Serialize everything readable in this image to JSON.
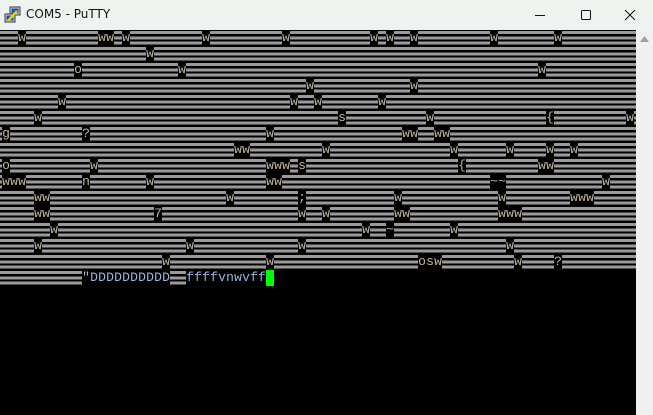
{
  "window": {
    "title": "COM5 - PuTTY",
    "icon": "putty-icon",
    "controls": [
      "minimize-icon",
      "maximize-icon",
      "close-icon"
    ]
  },
  "terminal": {
    "rows": [
      "  w         ww w         w         w          w w  w         w       w",
      "                  w",
      "         o            w                                            w",
      "                                      w            w",
      "       w                            w  w       w",
      "    w                                     s          w              {         w",
      "g         ?                      w                ww  ww",
      "                             ww         w               w      w    w  w",
      "o          w                     www s                   {         ww",
      "www       n       w              ww                          ~~            w",
      "    ww                      w        ;           w            w        www",
      "    ww             7                 w  w        ww           www",
      "      w                                      w  ~       w",
      "    w                  w             w                         w",
      "                    w            w                  osw         w    ?"
    ],
    "prompt_line": "          \"DDDDDDDDDD  ffffvnwvff",
    "colors": {
      "text": "#c2b49a",
      "prompt_text": "#98b4e0",
      "cursor": "#00ff00",
      "background": "#000000",
      "stripe": "#9a9a9a"
    }
  },
  "scrollbar": {
    "up_icon": "arrow-up-icon"
  }
}
